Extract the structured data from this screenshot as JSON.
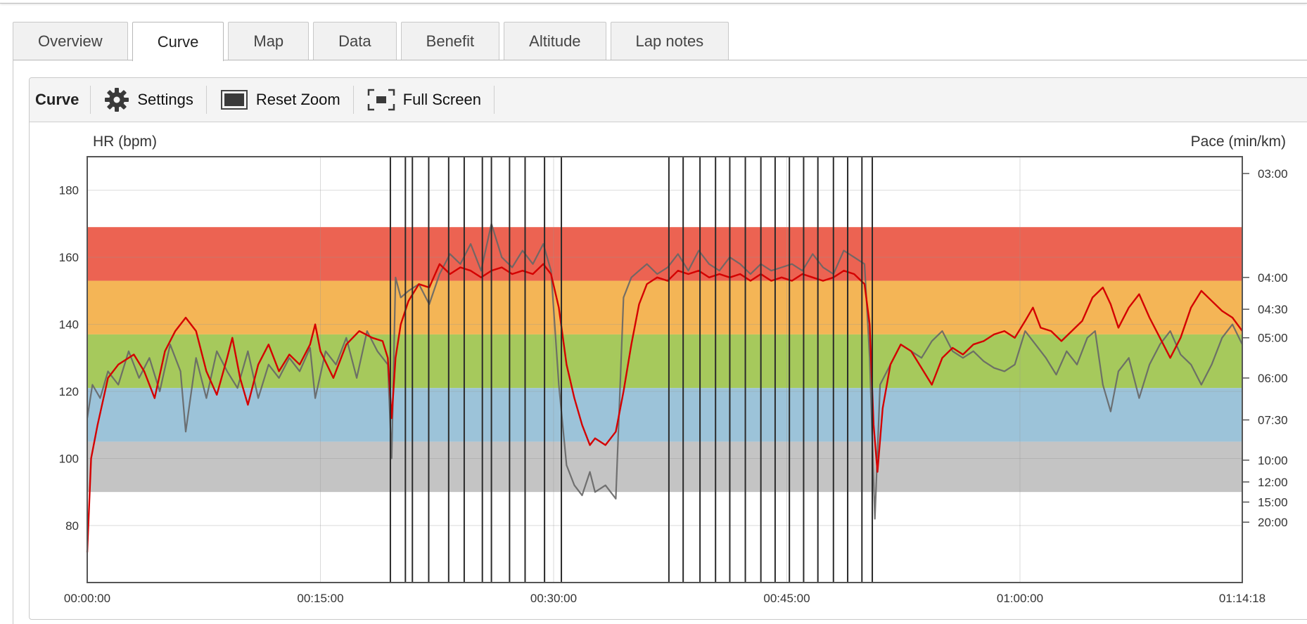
{
  "tabs": [
    "Overview",
    "Curve",
    "Map",
    "Data",
    "Benefit",
    "Altitude",
    "Lap notes"
  ],
  "active_tab": "Curve",
  "toolbar": {
    "title": "Curve",
    "settings_label": "Settings",
    "reset_zoom_label": "Reset Zoom",
    "full_screen_label": "Full Screen"
  },
  "chart_data": {
    "type": "line",
    "title": "",
    "ylabel": "HR (bpm)",
    "y2label": "Pace (min/km)",
    "ylim": [
      63,
      190
    ],
    "yticks": [
      80,
      100,
      120,
      140,
      160,
      180
    ],
    "x_seconds_range": [
      0,
      4458
    ],
    "xticks": [
      {
        "label": "00:00:00",
        "t": 0
      },
      {
        "label": "00:15:00",
        "t": 900
      },
      {
        "label": "00:30:00",
        "t": 1800
      },
      {
        "label": "00:45:00",
        "t": 2700
      },
      {
        "label": "01:00:00",
        "t": 3600
      },
      {
        "label": "01:14:18",
        "t": 4458
      }
    ],
    "pace_ticks": [
      {
        "label": "03:00",
        "hr_equiv": 185
      },
      {
        "label": "04:00",
        "hr_equiv": 154
      },
      {
        "label": "04:30",
        "hr_equiv": 144.5
      },
      {
        "label": "05:00",
        "hr_equiv": 136
      },
      {
        "label": "06:00",
        "hr_equiv": 124
      },
      {
        "label": "07:30",
        "hr_equiv": 111.5
      },
      {
        "label": "10:00",
        "hr_equiv": 99.5
      },
      {
        "label": "12:00",
        "hr_equiv": 93
      },
      {
        "label": "15:00",
        "hr_equiv": 87
      },
      {
        "label": "20:00",
        "hr_equiv": 81
      }
    ],
    "zones": [
      {
        "name": "zone-5",
        "from": 153,
        "to": 169,
        "color": "#ec6352"
      },
      {
        "name": "zone-4",
        "from": 137,
        "to": 153,
        "color": "#f4b556"
      },
      {
        "name": "zone-3",
        "from": 121,
        "to": 137,
        "color": "#a6c95c"
      },
      {
        "name": "zone-2",
        "from": 105,
        "to": 121,
        "color": "#9cc3d9"
      },
      {
        "name": "zone-1",
        "from": 90,
        "to": 105,
        "color": "#c4c4c4"
      }
    ],
    "lap_markers_s": [
      1170,
      1228,
      1255,
      1318,
      1395,
      1455,
      1525,
      1560,
      1630,
      1690,
      1765,
      1830,
      2245,
      2300,
      2365,
      2425,
      2480,
      2540,
      2600,
      2655,
      2710,
      2765,
      2820,
      2880,
      2935,
      2990,
      3030
    ],
    "series": [
      {
        "name": "HR",
        "color": "#d40000",
        "points": [
          [
            0,
            72
          ],
          [
            15,
            100
          ],
          [
            40,
            110
          ],
          [
            80,
            124
          ],
          [
            120,
            128
          ],
          [
            180,
            131
          ],
          [
            220,
            126
          ],
          [
            260,
            118
          ],
          [
            300,
            132
          ],
          [
            340,
            138
          ],
          [
            380,
            142
          ],
          [
            420,
            138
          ],
          [
            460,
            126
          ],
          [
            500,
            119
          ],
          [
            540,
            130
          ],
          [
            560,
            136
          ],
          [
            590,
            124
          ],
          [
            620,
            116
          ],
          [
            660,
            128
          ],
          [
            700,
            134
          ],
          [
            740,
            126
          ],
          [
            780,
            131
          ],
          [
            820,
            128
          ],
          [
            860,
            134
          ],
          [
            880,
            140
          ],
          [
            900,
            132
          ],
          [
            950,
            124
          ],
          [
            1000,
            134
          ],
          [
            1050,
            138
          ],
          [
            1100,
            136
          ],
          [
            1140,
            135
          ],
          [
            1160,
            130
          ],
          [
            1175,
            112
          ],
          [
            1190,
            130
          ],
          [
            1210,
            140
          ],
          [
            1240,
            147
          ],
          [
            1280,
            152
          ],
          [
            1320,
            151
          ],
          [
            1360,
            158
          ],
          [
            1400,
            155
          ],
          [
            1440,
            157
          ],
          [
            1480,
            156
          ],
          [
            1520,
            154
          ],
          [
            1560,
            156
          ],
          [
            1600,
            157
          ],
          [
            1640,
            155
          ],
          [
            1680,
            156
          ],
          [
            1720,
            155
          ],
          [
            1760,
            158
          ],
          [
            1790,
            155
          ],
          [
            1820,
            145
          ],
          [
            1850,
            128
          ],
          [
            1880,
            118
          ],
          [
            1910,
            110
          ],
          [
            1940,
            104
          ],
          [
            1960,
            106
          ],
          [
            2000,
            104
          ],
          [
            2040,
            108
          ],
          [
            2070,
            120
          ],
          [
            2100,
            134
          ],
          [
            2130,
            146
          ],
          [
            2160,
            152
          ],
          [
            2200,
            154
          ],
          [
            2240,
            153
          ],
          [
            2280,
            156
          ],
          [
            2320,
            155
          ],
          [
            2360,
            156
          ],
          [
            2400,
            154
          ],
          [
            2440,
            155
          ],
          [
            2480,
            154
          ],
          [
            2520,
            155
          ],
          [
            2560,
            153
          ],
          [
            2600,
            155
          ],
          [
            2640,
            153
          ],
          [
            2680,
            154
          ],
          [
            2720,
            153
          ],
          [
            2760,
            155
          ],
          [
            2800,
            154
          ],
          [
            2840,
            153
          ],
          [
            2880,
            154
          ],
          [
            2920,
            156
          ],
          [
            2960,
            155
          ],
          [
            3000,
            152
          ],
          [
            3020,
            140
          ],
          [
            3035,
            110
          ],
          [
            3050,
            96
          ],
          [
            3070,
            115
          ],
          [
            3100,
            128
          ],
          [
            3140,
            134
          ],
          [
            3180,
            132
          ],
          [
            3220,
            127
          ],
          [
            3260,
            122
          ],
          [
            3300,
            130
          ],
          [
            3340,
            133
          ],
          [
            3380,
            131
          ],
          [
            3420,
            134
          ],
          [
            3460,
            135
          ],
          [
            3500,
            137
          ],
          [
            3540,
            138
          ],
          [
            3580,
            136
          ],
          [
            3620,
            141
          ],
          [
            3650,
            145
          ],
          [
            3680,
            139
          ],
          [
            3720,
            138
          ],
          [
            3760,
            135
          ],
          [
            3800,
            138
          ],
          [
            3840,
            141
          ],
          [
            3880,
            148
          ],
          [
            3920,
            151
          ],
          [
            3950,
            146
          ],
          [
            3980,
            139
          ],
          [
            4020,
            145
          ],
          [
            4060,
            149
          ],
          [
            4100,
            142
          ],
          [
            4140,
            136
          ],
          [
            4180,
            130
          ],
          [
            4220,
            136
          ],
          [
            4260,
            145
          ],
          [
            4300,
            150
          ],
          [
            4340,
            147
          ],
          [
            4380,
            144
          ],
          [
            4420,
            142
          ],
          [
            4458,
            138
          ]
        ]
      },
      {
        "name": "Pace",
        "color": "#666666",
        "points": [
          [
            0,
            112
          ],
          [
            20,
            122
          ],
          [
            50,
            118
          ],
          [
            80,
            126
          ],
          [
            120,
            122
          ],
          [
            160,
            132
          ],
          [
            200,
            124
          ],
          [
            240,
            130
          ],
          [
            280,
            120
          ],
          [
            320,
            134
          ],
          [
            360,
            126
          ],
          [
            380,
            108
          ],
          [
            420,
            130
          ],
          [
            460,
            118
          ],
          [
            500,
            132
          ],
          [
            540,
            126
          ],
          [
            580,
            121
          ],
          [
            620,
            132
          ],
          [
            660,
            118
          ],
          [
            700,
            128
          ],
          [
            740,
            124
          ],
          [
            780,
            130
          ],
          [
            820,
            126
          ],
          [
            860,
            133
          ],
          [
            880,
            118
          ],
          [
            920,
            132
          ],
          [
            960,
            128
          ],
          [
            1000,
            136
          ],
          [
            1040,
            124
          ],
          [
            1080,
            138
          ],
          [
            1120,
            132
          ],
          [
            1160,
            128
          ],
          [
            1175,
            100
          ],
          [
            1190,
            154
          ],
          [
            1210,
            148
          ],
          [
            1240,
            150
          ],
          [
            1280,
            152
          ],
          [
            1320,
            146
          ],
          [
            1360,
            155
          ],
          [
            1400,
            161
          ],
          [
            1440,
            158
          ],
          [
            1480,
            164
          ],
          [
            1520,
            156
          ],
          [
            1560,
            170
          ],
          [
            1600,
            160
          ],
          [
            1640,
            157
          ],
          [
            1680,
            162
          ],
          [
            1720,
            158
          ],
          [
            1760,
            164
          ],
          [
            1790,
            156
          ],
          [
            1820,
            122
          ],
          [
            1850,
            98
          ],
          [
            1880,
            92
          ],
          [
            1910,
            89
          ],
          [
            1940,
            96
          ],
          [
            1960,
            90
          ],
          [
            2000,
            92
          ],
          [
            2040,
            88
          ],
          [
            2070,
            148
          ],
          [
            2100,
            154
          ],
          [
            2130,
            156
          ],
          [
            2160,
            158
          ],
          [
            2200,
            155
          ],
          [
            2240,
            157
          ],
          [
            2280,
            161
          ],
          [
            2320,
            156
          ],
          [
            2360,
            162
          ],
          [
            2400,
            158
          ],
          [
            2440,
            156
          ],
          [
            2480,
            160
          ],
          [
            2520,
            158
          ],
          [
            2560,
            155
          ],
          [
            2600,
            158
          ],
          [
            2640,
            156
          ],
          [
            2680,
            157
          ],
          [
            2720,
            158
          ],
          [
            2760,
            156
          ],
          [
            2800,
            161
          ],
          [
            2840,
            157
          ],
          [
            2880,
            155
          ],
          [
            2920,
            162
          ],
          [
            2960,
            160
          ],
          [
            3000,
            158
          ],
          [
            3020,
            130
          ],
          [
            3040,
            82
          ],
          [
            3060,
            122
          ],
          [
            3100,
            128
          ],
          [
            3140,
            134
          ],
          [
            3180,
            132
          ],
          [
            3220,
            130
          ],
          [
            3260,
            135
          ],
          [
            3300,
            138
          ],
          [
            3340,
            132
          ],
          [
            3380,
            130
          ],
          [
            3420,
            132
          ],
          [
            3460,
            129
          ],
          [
            3500,
            127
          ],
          [
            3540,
            126
          ],
          [
            3580,
            128
          ],
          [
            3620,
            138
          ],
          [
            3660,
            134
          ],
          [
            3700,
            130
          ],
          [
            3740,
            125
          ],
          [
            3780,
            132
          ],
          [
            3820,
            128
          ],
          [
            3860,
            136
          ],
          [
            3890,
            138
          ],
          [
            3920,
            122
          ],
          [
            3950,
            114
          ],
          [
            3980,
            126
          ],
          [
            4020,
            130
          ],
          [
            4060,
            118
          ],
          [
            4100,
            128
          ],
          [
            4140,
            134
          ],
          [
            4180,
            138
          ],
          [
            4220,
            131
          ],
          [
            4260,
            128
          ],
          [
            4300,
            122
          ],
          [
            4340,
            128
          ],
          [
            4380,
            136
          ],
          [
            4420,
            140
          ],
          [
            4458,
            134
          ]
        ]
      }
    ]
  }
}
